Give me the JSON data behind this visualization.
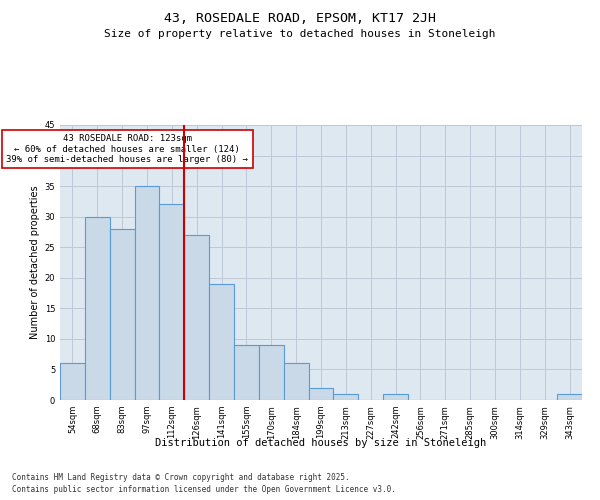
{
  "title": "43, ROSEDALE ROAD, EPSOM, KT17 2JH",
  "subtitle": "Size of property relative to detached houses in Stoneleigh",
  "xlabel": "Distribution of detached houses by size in Stoneleigh",
  "ylabel": "Number of detached properties",
  "categories": [
    "54sqm",
    "68sqm",
    "83sqm",
    "97sqm",
    "112sqm",
    "126sqm",
    "141sqm",
    "155sqm",
    "170sqm",
    "184sqm",
    "199sqm",
    "213sqm",
    "227sqm",
    "242sqm",
    "256sqm",
    "271sqm",
    "285sqm",
    "300sqm",
    "314sqm",
    "329sqm",
    "343sqm"
  ],
  "values": [
    6,
    30,
    28,
    35,
    32,
    27,
    19,
    9,
    9,
    6,
    2,
    1,
    0,
    1,
    0,
    0,
    0,
    0,
    0,
    0,
    1
  ],
  "bar_color": "#c9d9e8",
  "bar_edgecolor": "#5b9bd5",
  "bar_linewidth": 0.8,
  "vline_x": 4.5,
  "vline_color": "#cc0000",
  "vline_linewidth": 1.5,
  "annotation_text": "43 ROSEDALE ROAD: 123sqm\n← 60% of detached houses are smaller (124)\n39% of semi-detached houses are larger (80) →",
  "annotation_box_color": "#cc0000",
  "annotation_text_color": "#000000",
  "annotation_fontsize": 6.5,
  "ylim": [
    0,
    45
  ],
  "yticks": [
    0,
    5,
    10,
    15,
    20,
    25,
    30,
    35,
    40,
    45
  ],
  "grid_color": "#c0c8d8",
  "background_color": "#dde8f0",
  "footer_line1": "Contains HM Land Registry data © Crown copyright and database right 2025.",
  "footer_line2": "Contains public sector information licensed under the Open Government Licence v3.0.",
  "title_fontsize": 9.5,
  "subtitle_fontsize": 8,
  "xlabel_fontsize": 7.5,
  "ylabel_fontsize": 7,
  "tick_fontsize": 6,
  "footer_fontsize": 5.5
}
